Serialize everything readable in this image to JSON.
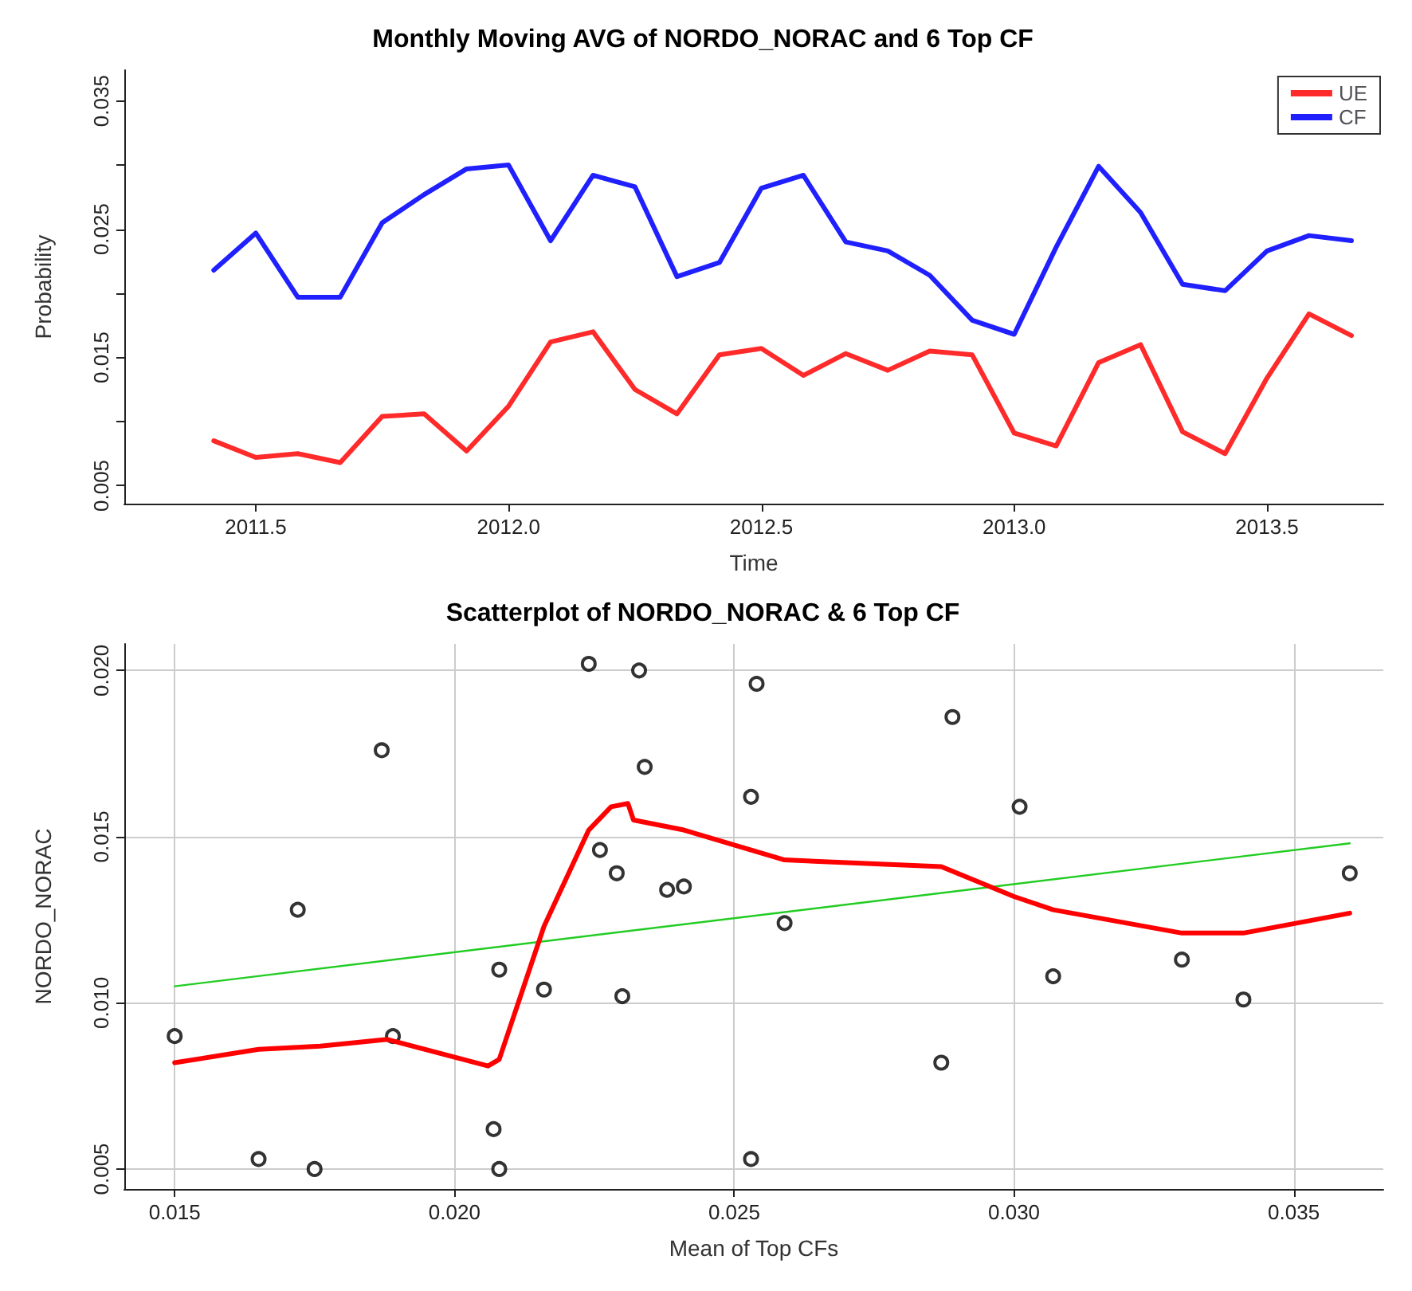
{
  "chart_data": [
    {
      "type": "line",
      "title": "Monthly Moving AVG of NORDO_NORAC and 6 Top CF",
      "xlabel": "Time",
      "ylabel": "Probability",
      "x": [
        2011.417,
        2011.5,
        2011.583,
        2011.667,
        2011.75,
        2011.833,
        2011.917,
        2012.0,
        2012.083,
        2012.167,
        2012.25,
        2012.333,
        2012.417,
        2012.5,
        2012.583,
        2012.667,
        2012.75,
        2012.833,
        2012.917,
        2013.0,
        2013.083,
        2013.167,
        2013.25,
        2013.333,
        2013.417,
        2013.5,
        2013.583,
        2013.667
      ],
      "series": [
        {
          "name": "UE",
          "color": "#ff2a2a",
          "values": [
            0.0085,
            0.0072,
            0.0075,
            0.0068,
            0.0104,
            0.0106,
            0.0077,
            0.0112,
            0.0162,
            0.017,
            0.0125,
            0.0106,
            0.0152,
            0.0157,
            0.0136,
            0.0153,
            0.014,
            0.0155,
            0.0152,
            0.0091,
            0.0081,
            0.0146,
            0.016,
            0.0092,
            0.0075,
            0.0134,
            0.0184,
            0.0167
          ]
        },
        {
          "name": "CF",
          "color": "#2020ff",
          "values": [
            0.0218,
            0.0247,
            0.0197,
            0.0197,
            0.0255,
            0.0277,
            0.0297,
            0.03,
            0.0241,
            0.0292,
            0.0283,
            0.0213,
            0.0224,
            0.0282,
            0.0292,
            0.024,
            0.0233,
            0.0214,
            0.0179,
            0.0168,
            0.0236,
            0.0299,
            0.0263,
            0.0207,
            0.0202,
            0.0233,
            0.0245,
            0.0241
          ]
        }
      ],
      "xlim": [
        2011.24,
        2013.73
      ],
      "xticks": [
        2011.5,
        {
          "value": 2012,
          "label": "2012.0"
        },
        2012.5,
        {
          "value": 2013,
          "label": "2013.0"
        },
        2013.5
      ],
      "ylim": [
        0.0036,
        0.0374
      ],
      "yticks": [
        0.005,
        {
          "value": 0.01,
          "label": null
        },
        0.015,
        {
          "value": 0.02,
          "label": null
        },
        0.025,
        {
          "value": 0.03,
          "label": null
        },
        0.035
      ],
      "grid": false,
      "legend": "top right",
      "marker": "none",
      "line_style": "solid"
    },
    {
      "type": "scatter",
      "title": "Scatterplot of NORDO_NORAC & 6 Top CF",
      "xlabel": "Mean of Top CFs",
      "ylabel": "NORDO_NORAC",
      "series": [
        {
          "color": "#000000",
          "marker": "circle",
          "x": [
            0.015,
            0.0165,
            0.0175,
            0.0172,
            0.0187,
            0.0189,
            0.0207,
            0.0208,
            0.0208,
            0.0216,
            0.0224,
            0.0226,
            0.0229,
            0.023,
            0.0233,
            0.0234,
            0.0238,
            0.0241,
            0.0253,
            0.0254,
            0.0253,
            0.0259,
            0.0287,
            0.0289,
            0.0301,
            0.0307,
            0.033,
            0.0341,
            0.036
          ],
          "values": [
            0.009,
            0.0053,
            0.005,
            0.0128,
            0.0176,
            0.009,
            0.0062,
            0.005,
            0.011,
            0.0104,
            0.0202,
            0.0146,
            0.0139,
            0.0102,
            0.02,
            0.0171,
            0.0134,
            0.0135,
            0.0162,
            0.0196,
            0.0053,
            0.0124,
            0.0082,
            0.0186,
            0.0159,
            0.0108,
            0.0113,
            0.0101,
            0.0139
          ]
        },
        {
          "type": "line",
          "color": "#22cc22",
          "marker": "none",
          "x": [
            0.015,
            0.036
          ],
          "values": [
            0.0105,
            0.0148
          ]
        },
        {
          "type": "line",
          "color": "#ff0000",
          "marker": "none",
          "x": [
            0.015,
            0.0165,
            0.0176,
            0.0188,
            0.0206,
            0.0208,
            0.0216,
            0.0224,
            0.0228,
            0.0231,
            0.0232,
            0.0241,
            0.0253,
            0.0259,
            0.0287,
            0.03,
            0.0307,
            0.033,
            0.0341,
            0.036
          ],
          "values": [
            0.0082,
            0.0086,
            0.0087,
            0.0089,
            0.0081,
            0.0083,
            0.0123,
            0.0152,
            0.0159,
            0.016,
            0.0155,
            0.0152,
            0.0146,
            0.0143,
            0.0141,
            0.0132,
            0.0128,
            0.0121,
            0.0121,
            0.0127
          ]
        }
      ],
      "xlim": [
        0.0141,
        0.0366
      ],
      "xticks": [
        0.015,
        {
          "value": 0.02,
          "label": "0.020"
        },
        0.025,
        {
          "value": 0.03,
          "label": "0.030"
        },
        0.035
      ],
      "ylim": [
        0.0044,
        0.0208
      ],
      "yticks": [
        0.005,
        {
          "value": 0.01,
          "label": "0.010"
        },
        0.015,
        {
          "value": 0.02,
          "label": "0.020"
        }
      ],
      "grid": true,
      "line_style": "solid"
    }
  ]
}
